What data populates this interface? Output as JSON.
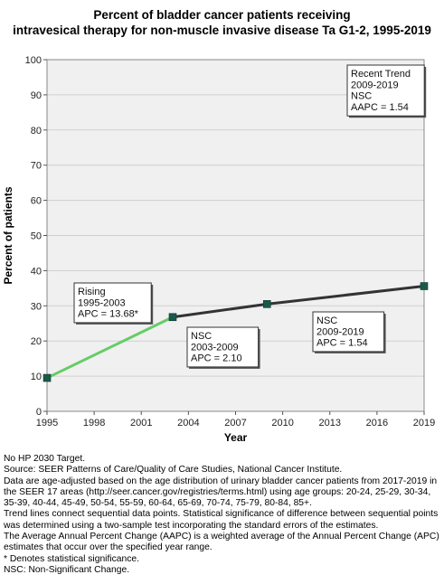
{
  "title_lines": [
    "Percent of bladder cancer patients receiving",
    "intravesical therapy for non-muscle invasive disease Ta G1-2, 1995-2019"
  ],
  "chart_data": {
    "type": "line",
    "xlabel": "Year",
    "ylabel": "Percent of patients",
    "xlim": [
      1995,
      2019
    ],
    "ylim": [
      0,
      100
    ],
    "xticks": [
      1995,
      1998,
      2001,
      2004,
      2007,
      2010,
      2013,
      2016,
      2019
    ],
    "yticks": [
      0,
      10,
      20,
      30,
      40,
      50,
      60,
      70,
      80,
      90,
      100
    ],
    "grid": true,
    "points": [
      {
        "x": 1995,
        "y": 9.5
      },
      {
        "x": 2003,
        "y": 26.8
      },
      {
        "x": 2009,
        "y": 30.5
      },
      {
        "x": 2019,
        "y": 35.6
      }
    ],
    "segments": [
      {
        "from": 1995,
        "to": 2003,
        "color": "#66cc66"
      },
      {
        "from": 2003,
        "to": 2009,
        "color": "#333333"
      },
      {
        "from": 2009,
        "to": 2019,
        "color": "#333333"
      }
    ],
    "marker_color": "#1a5a4a",
    "annotations": [
      {
        "lines": [
          "Rising",
          "1995-2003",
          "APC = 13.68*"
        ],
        "anchor": "left-middle"
      },
      {
        "lines": [
          "NSC",
          "2003-2009",
          "APC =  2.10"
        ],
        "anchor": "center-middle"
      },
      {
        "lines": [
          "NSC",
          "2009-2019",
          "APC =  1.54"
        ],
        "anchor": "right-middle"
      },
      {
        "lines": [
          "Recent Trend",
          "2009-2019",
          "NSC",
          "AAPC =  1.54"
        ],
        "anchor": "top-right"
      }
    ]
  },
  "notes": [
    "No HP 2030 Target.",
    "Source: SEER Patterns of Care/Quality of Care Studies, National Cancer Institute.",
    "Data are age-adjusted based on the age distribution of urinary bladder cancer patients from 2017-2019 in the SEER 17 areas (http://seer.cancer.gov/registries/terms.html) using age groups: 20-24, 25-29, 30-34, 35-39, 40-44, 45-49, 50-54, 55-59, 60-64, 65-69, 70-74, 75-79, 80-84, 85+.",
    "Trend lines connect sequential data points. Statistical significance of difference between sequential points was determined using a two-sample test incorporating the standard errors of the estimates.",
    "The Average Annual Percent Change (AAPC) is a weighted average of the Annual Percent Change (APC) estimates that occur over the specified year range.",
    "* Denotes statistical significance.",
    "NSC: Non-Significant Change."
  ]
}
